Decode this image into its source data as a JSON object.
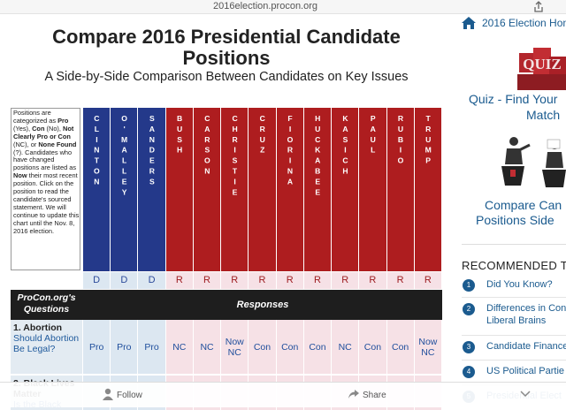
{
  "top_bar": {
    "url": "2016election.procon.org"
  },
  "page": {
    "title_lines": [
      "Compare 2016 Presidential Candidate",
      "Positions"
    ],
    "subtitle": "A Side-by-Side Comparison Between Candidates on Key Issues"
  },
  "table": {
    "intro": [
      {
        "text": "Positions are categorized as ",
        "bold": false
      },
      {
        "text": "Pro",
        "bold": true
      },
      {
        "text": " (Yes), ",
        "bold": false
      },
      {
        "text": "Con",
        "bold": true
      },
      {
        "text": " (No), ",
        "bold": false
      },
      {
        "text": "Not Clearly Pro or Con",
        "bold": true
      },
      {
        "text": " (NC), or ",
        "bold": false
      },
      {
        "text": "None Found",
        "bold": true
      },
      {
        "text": " (?). Candidates who have changed positions are listed as ",
        "bold": false
      },
      {
        "text": "Now",
        "bold": true
      },
      {
        "text": " their most recent position. Click on the position to read the candidate's sourced statement. We will continue to update this chart until the Nov. 8, 2016 election.",
        "bold": false
      }
    ],
    "party_colors": {
      "D": {
        "header": "#24398a",
        "cell": "#dce7f1",
        "text": "#2b4a9a"
      },
      "R": {
        "header": "#ae1d1f",
        "cell": "#f6e1e6",
        "text": "#9c1a1e"
      }
    },
    "candidates": [
      {
        "name": "CLINTON",
        "party": "D"
      },
      {
        "name": "O'MALLEY",
        "party": "D"
      },
      {
        "name": "SANDERS",
        "party": "D"
      },
      {
        "name": "BUSH",
        "party": "R"
      },
      {
        "name": "CARSON",
        "party": "R"
      },
      {
        "name": "CHRISTIE",
        "party": "R"
      },
      {
        "name": "CRUZ",
        "party": "R"
      },
      {
        "name": "FIORINA",
        "party": "R"
      },
      {
        "name": "HUCKABEE",
        "party": "R"
      },
      {
        "name": "KASICH",
        "party": "R"
      },
      {
        "name": "PAUL",
        "party": "R"
      },
      {
        "name": "RUBIO",
        "party": "R"
      },
      {
        "name": "TRUMP",
        "party": "R"
      }
    ],
    "questions_header": "ProCon.org's Questions",
    "responses_header": "Responses",
    "rows": [
      {
        "topic": "1. Abortion",
        "question": "Should Abortion Be Legal?",
        "responses": [
          "Pro",
          "Pro",
          "Pro",
          "NC",
          "NC",
          "Now NC",
          "Con",
          "Con",
          "Con",
          "NC",
          "Con",
          "Con",
          "Now NC"
        ]
      },
      {
        "topic": "2. Black Lives Matter",
        "question": "Is the Black",
        "responses": []
      }
    ]
  },
  "sidebar": {
    "home_link": "2016 Election Hon",
    "quiz_image_text": "QUIZ",
    "quiz_lines": [
      "Quiz - Find Your",
      "Match"
    ],
    "compare_lines": [
      "Compare Can",
      "Positions Side"
    ],
    "recommended_heading": "RECOMMENDED T",
    "items": [
      {
        "number": 1,
        "lines": [
          "Did You Know?"
        ]
      },
      {
        "number": 2,
        "lines": [
          "Differences in Con",
          "Liberal Brains"
        ]
      },
      {
        "number": 3,
        "lines": [
          "Candidate Finance"
        ]
      },
      {
        "number": 4,
        "lines": [
          "US Political Partie"
        ]
      },
      {
        "number": 5,
        "lines": [
          "Presidential Elect"
        ]
      }
    ]
  },
  "bottom_bar": {
    "follow": "Follow",
    "share": "Share"
  }
}
